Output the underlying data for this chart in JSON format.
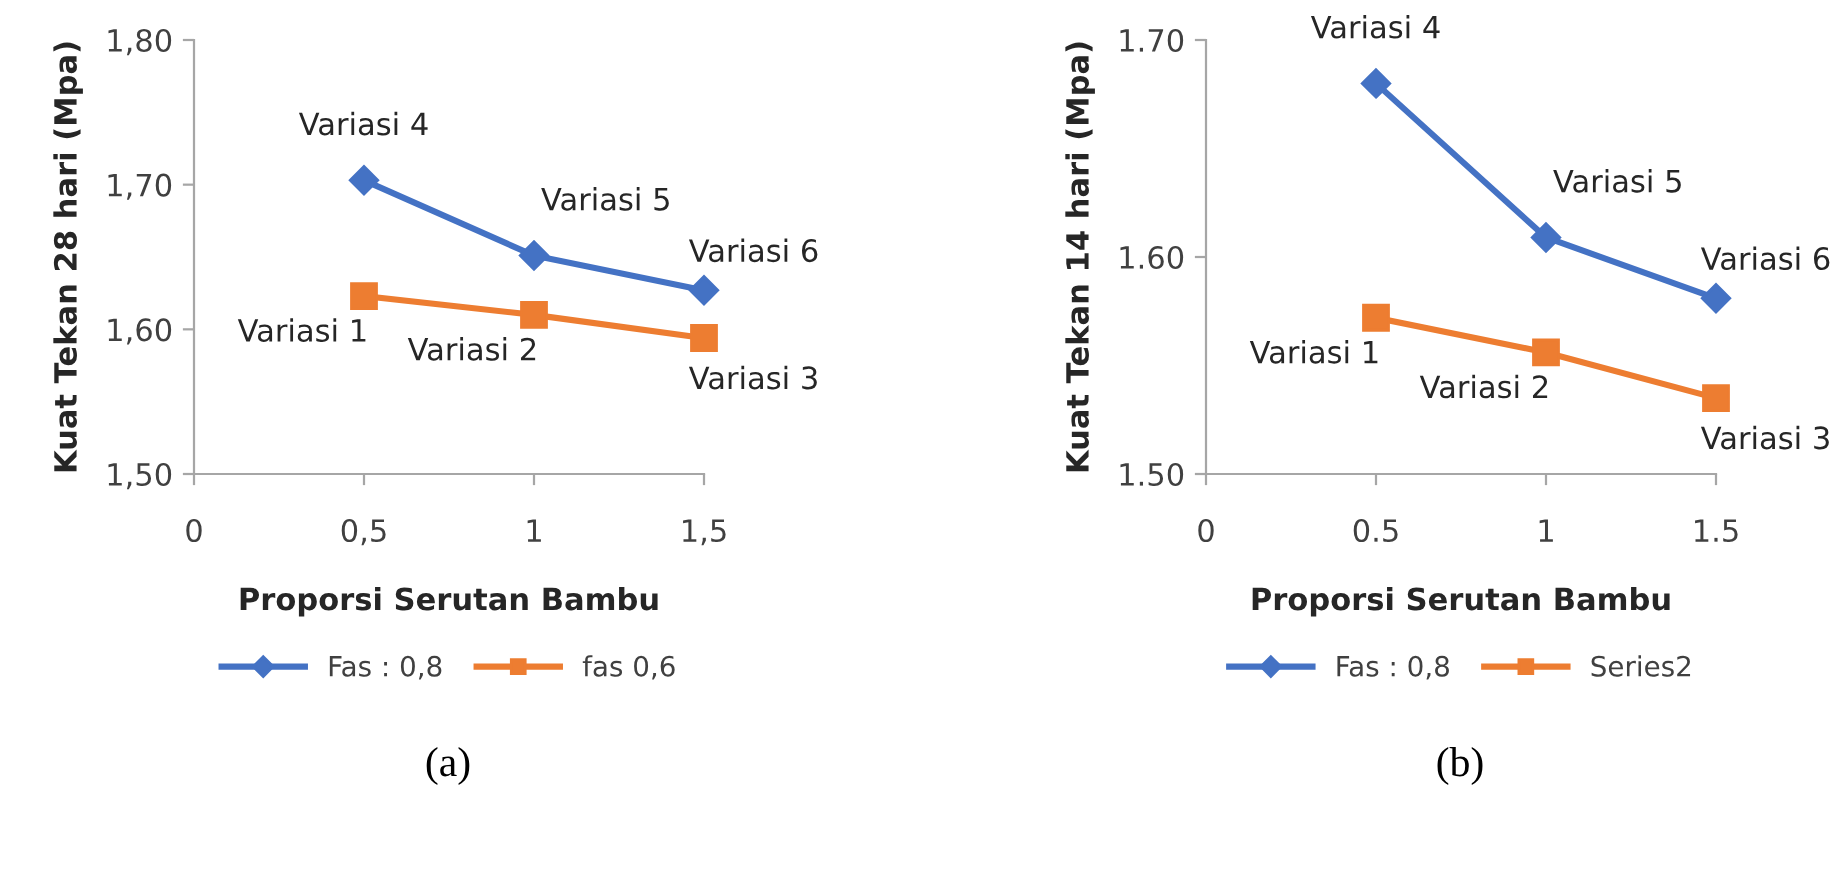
{
  "chart_data": [
    {
      "type": "line",
      "xlabel": "Proporsi Serutan Bambu",
      "ylabel": "Kuat Tekan 28 hari (Mpa)",
      "x": [
        0.5,
        1,
        1.5
      ],
      "series": [
        {
          "name": "Fas : 0,8",
          "color": "#4472c4",
          "values": [
            1.703,
            1.651,
            1.627
          ],
          "marker": "diamond"
        },
        {
          "name": "fas 0,6",
          "color": "#ed7d31",
          "values": [
            1.623,
            1.61,
            1.594
          ],
          "marker": "square"
        }
      ],
      "xlim": [
        0,
        1.5
      ],
      "xticks": [
        0,
        {
          "value": 0.5,
          "label": "0,5"
        },
        1,
        {
          "value": 1.5,
          "label": "1,5"
        }
      ],
      "ylim": [
        1.5,
        1.8
      ],
      "yticks": [
        {
          "value": 1.5,
          "label": "1,50"
        },
        {
          "value": 1.6,
          "label": "1,60"
        },
        {
          "value": 1.7,
          "label": "1,70"
        },
        {
          "value": 1.8,
          "label": "1,80"
        }
      ],
      "grid": false,
      "legend": "bottom",
      "line_style": "solid",
      "annotations": [
        {
          "text": "Variasi 4",
          "x": 0.5,
          "y": 1.703
        },
        {
          "text": "Variasi 5",
          "x": 1,
          "y": 1.651
        },
        {
          "text": "Variasi 6",
          "x": 1.5,
          "y": 1.627
        },
        {
          "text": "Variasi 1",
          "x": 0.5,
          "y": 1.623
        },
        {
          "text": "Variasi 2",
          "x": 1,
          "y": 1.61
        },
        {
          "text": "Variasi 3",
          "x": 1.5,
          "y": 1.594
        },
        "(a)"
      ]
    },
    {
      "type": "line",
      "xlabel": "Proporsi Serutan Bambu",
      "ylabel": "Kuat Tekan 14 hari (Mpa)",
      "x": [
        0.5,
        1,
        1.5
      ],
      "series": [
        {
          "name": "Fas : 0,8",
          "color": "#4472c4",
          "values": [
            1.68,
            1.609,
            1.581
          ],
          "marker": "diamond"
        },
        {
          "name": "Series2",
          "color": "#ed7d31",
          "values": [
            1.572,
            1.556,
            1.535
          ],
          "marker": "square"
        }
      ],
      "xlim": [
        0,
        1.5
      ],
      "xticks": [
        0,
        0.5,
        1,
        1.5
      ],
      "ylim": [
        1.5,
        1.7
      ],
      "yticks": [
        {
          "value": 1.5,
          "label": "1.50"
        },
        {
          "value": 1.6,
          "label": "1.60"
        },
        {
          "value": 1.7,
          "label": "1.70"
        }
      ],
      "grid": false,
      "legend": "bottom",
      "line_style": "solid",
      "annotations": [
        {
          "text": "Variasi 4",
          "x": 0.5,
          "y": 1.68
        },
        {
          "text": "Variasi 5",
          "x": 1,
          "y": 1.609
        },
        {
          "text": "Variasi 6",
          "x": 1.5,
          "y": 1.581
        },
        {
          "text": "Variasi 1",
          "x": 0.5,
          "y": 1.572
        },
        {
          "text": "Variasi 2",
          "x": 1,
          "y": 1.556
        },
        {
          "text": "Variasi 3",
          "x": 1.5,
          "y": 1.535
        },
        "(b)"
      ]
    }
  ]
}
